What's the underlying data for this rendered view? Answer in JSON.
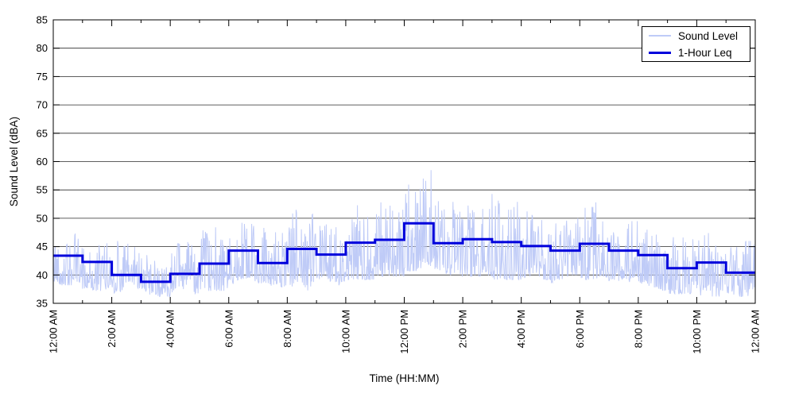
{
  "figure": {
    "background": "#ffffff",
    "legend": {
      "position": "top-right",
      "items": [
        {
          "label": "Sound Level",
          "color": "#bfcbf7",
          "line_weight": 2
        },
        {
          "label": "1-Hour Leq",
          "color": "#0000dc",
          "line_weight": 3
        }
      ]
    }
  },
  "chart_data": {
    "type": "line",
    "title": "",
    "xlabel": "Time (HH:MM)",
    "ylabel": "Sound Level (dBA)",
    "ylim": [
      35,
      85
    ],
    "ytick_step": 5,
    "ytick_labels": [
      "35",
      "40",
      "45",
      "50",
      "55",
      "60",
      "65",
      "70",
      "75",
      "80",
      "85"
    ],
    "xlim_hours": [
      0,
      24
    ],
    "xtick_major_every_hours": 2,
    "xtick_minor_every_hours": 1,
    "xtick_labels": [
      "12:00 AM",
      "2:00 AM",
      "4:00 AM",
      "6:00 AM",
      "8:00 AM",
      "10:00 AM",
      "12:00 PM",
      "2:00 PM",
      "4:00 PM",
      "6:00 PM",
      "8:00 PM",
      "10:00 PM",
      "12:00 AM"
    ],
    "grid": "horizontal-solid",
    "grid_color": "#2a2a2a",
    "axis_color": "#000000",
    "legend_position": "top-right",
    "series": [
      {
        "name": "Sound Level",
        "style": "noisy-minute-trace",
        "color": "#bfcbf7",
        "width": 1,
        "samples_per_hour": 60
      },
      {
        "name": "1-Hour Leq",
        "style": "step",
        "color": "#0000dc",
        "width": 3,
        "hourly_values": [
          43.4,
          42.3,
          40.0,
          38.8,
          40.2,
          42.0,
          44.3,
          42.1,
          44.6,
          43.6,
          45.7,
          46.2,
          49.1,
          45.6,
          46.3,
          45.8,
          45.1,
          44.3,
          45.5,
          44.3,
          43.5,
          41.2,
          42.2,
          40.4
        ]
      }
    ],
    "noise_envelope": {
      "hourly_min": [
        38.5,
        37.5,
        37.0,
        36.5,
        37.0,
        37.5,
        38.5,
        37.5,
        37.5,
        38.5,
        39.5,
        40.0,
        41.0,
        40.0,
        40.0,
        39.5,
        39.5,
        39.0,
        39.0,
        38.5,
        37.5,
        37.0,
        36.5,
        36.5
      ],
      "hourly_max": [
        47.0,
        46.0,
        45.5,
        43.5,
        45.5,
        48.0,
        49.0,
        48.0,
        51.0,
        49.0,
        52.0,
        52.5,
        57.0,
        53.5,
        52.5,
        53.5,
        51.0,
        50.0,
        52.0,
        49.5,
        47.5,
        47.0,
        47.0,
        46.0
      ]
    },
    "notable_points": [
      {
        "hour": 0.75,
        "value": 47.3
      },
      {
        "hour": 2.2,
        "value": 46.0
      },
      {
        "hour": 3.5,
        "value": 36.6
      },
      {
        "hour": 4.6,
        "value": 45.8
      },
      {
        "hour": 5.55,
        "value": 48.4
      },
      {
        "hour": 6.45,
        "value": 49.2
      },
      {
        "hour": 7.2,
        "value": 48.3
      },
      {
        "hour": 8.3,
        "value": 51.5
      },
      {
        "hour": 10.4,
        "value": 52.3
      },
      {
        "hour": 11.2,
        "value": 52.8
      },
      {
        "hour": 12.05,
        "value": 54.3
      },
      {
        "hour": 12.55,
        "value": 55.2
      },
      {
        "hour": 12.92,
        "value": 58.5
      },
      {
        "hour": 15.0,
        "value": 54.3
      },
      {
        "hour": 16.2,
        "value": 51.2
      },
      {
        "hour": 18.55,
        "value": 52.8
      },
      {
        "hour": 20.3,
        "value": 48.0
      },
      {
        "hour": 22.4,
        "value": 47.4
      },
      {
        "hour": 23.75,
        "value": 36.3
      }
    ],
    "seed": 42
  }
}
